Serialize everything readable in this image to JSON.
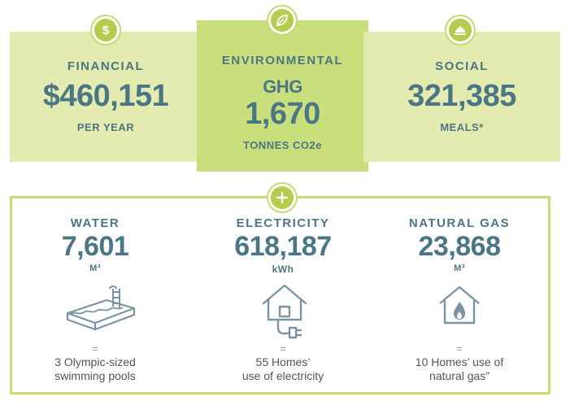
{
  "top": {
    "financial": {
      "label": "FINANCIAL",
      "value": "$460,151",
      "unit": "PER YEAR",
      "icon": "dollar-icon"
    },
    "environmental": {
      "label": "ENVIRONMENTAL",
      "metric": "GHG",
      "value": "1,670",
      "unit": "TONNES CO2e",
      "icon": "leaf-icon"
    },
    "social": {
      "label": "SOCIAL",
      "value": "321,385",
      "unit": "MEALS*",
      "icon": "food-cloche-icon"
    }
  },
  "bottom": {
    "icon": "plus-icon",
    "water": {
      "label": "WATER",
      "value": "7,601",
      "unit": "M³",
      "equals": "=",
      "desc_line1": "3 Olympic-sized",
      "desc_line2": "swimming pools",
      "icon": "swimming-pool-icon"
    },
    "electricity": {
      "label": "ELECTRICITY",
      "value": "618,187",
      "unit": "kWh",
      "equals": "=",
      "desc_line1": "55 Homes’",
      "desc_line2": "use of electricity",
      "icon": "house-plug-icon"
    },
    "gas": {
      "label": "NATURAL GAS",
      "value": "23,868",
      "unit": "M³",
      "equals": "=",
      "desc_line1": "10 Homes’ use of",
      "desc_line2": "natural gas”",
      "icon": "house-flame-icon"
    }
  },
  "colors": {
    "text": "#4b7684",
    "light_green": "#e3ebb1",
    "mid_green": "#c9df7b",
    "accent": "#b5cc4c"
  }
}
